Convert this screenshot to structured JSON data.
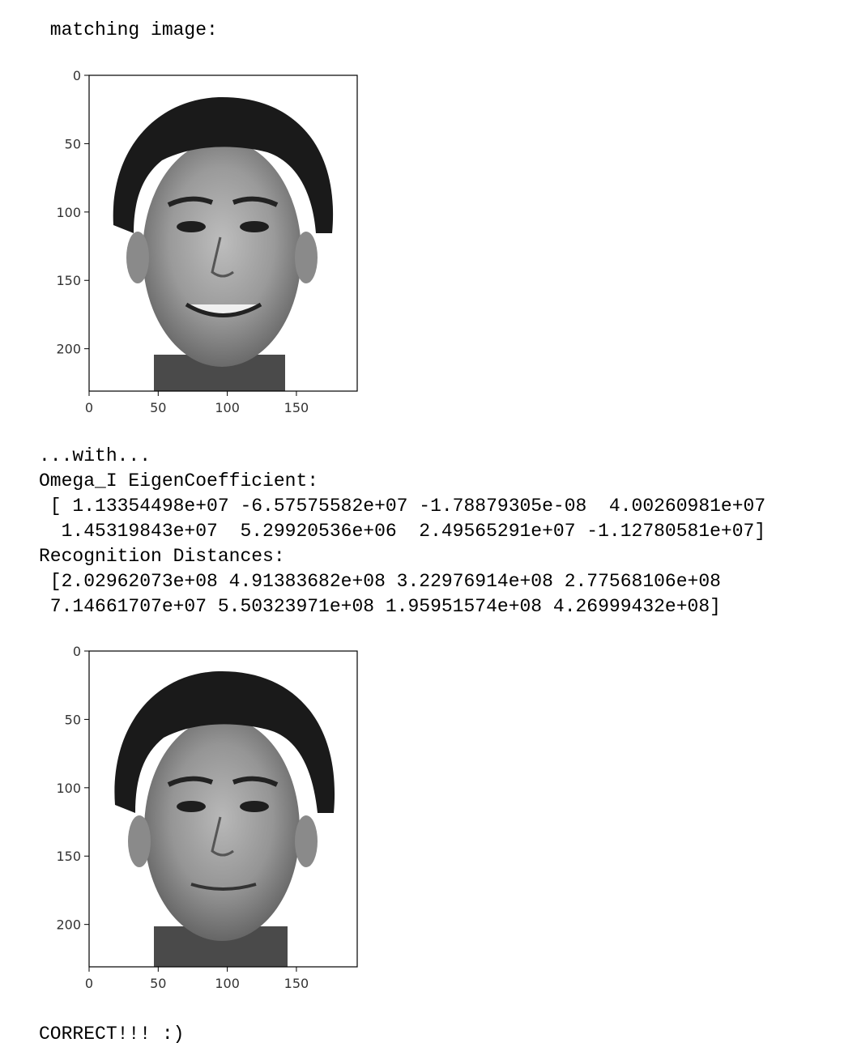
{
  "output": {
    "header_line": " matching image:",
    "with_line": "...with...",
    "omega_label": "Omega_I EigenCoefficient:",
    "omega_line1": " [ 1.13354498e+07 -6.57575582e+07 -1.78879305e-08  4.00260981e+07",
    "omega_line2": "  1.45319843e+07  5.29920536e+06  2.49565291e+07 -1.12780581e+07]",
    "distances_label": "Recognition Distances:",
    "distances_line1": " [2.02962073e+08 4.91383682e+08 3.22976914e+08 2.77568106e+08",
    "distances_line2": " 7.14661707e+07 5.50323971e+08 1.95951574e+08 4.26999432e+08]",
    "result": "CORRECT!!! :)"
  },
  "plots": [
    {
      "image": "grayscale-face-photo-smiling",
      "x_ticks": [
        "0",
        "50",
        "100",
        "150"
      ],
      "y_ticks": [
        "0",
        "50",
        "100",
        "150",
        "200"
      ],
      "x_range": [
        0,
        194
      ],
      "y_range": [
        0,
        231
      ]
    },
    {
      "image": "grayscale-face-photo-neutral",
      "x_ticks": [
        "0",
        "50",
        "100",
        "150"
      ],
      "y_ticks": [
        "0",
        "50",
        "100",
        "150",
        "200"
      ],
      "x_range": [
        0,
        194
      ],
      "y_range": [
        0,
        231
      ]
    }
  ]
}
